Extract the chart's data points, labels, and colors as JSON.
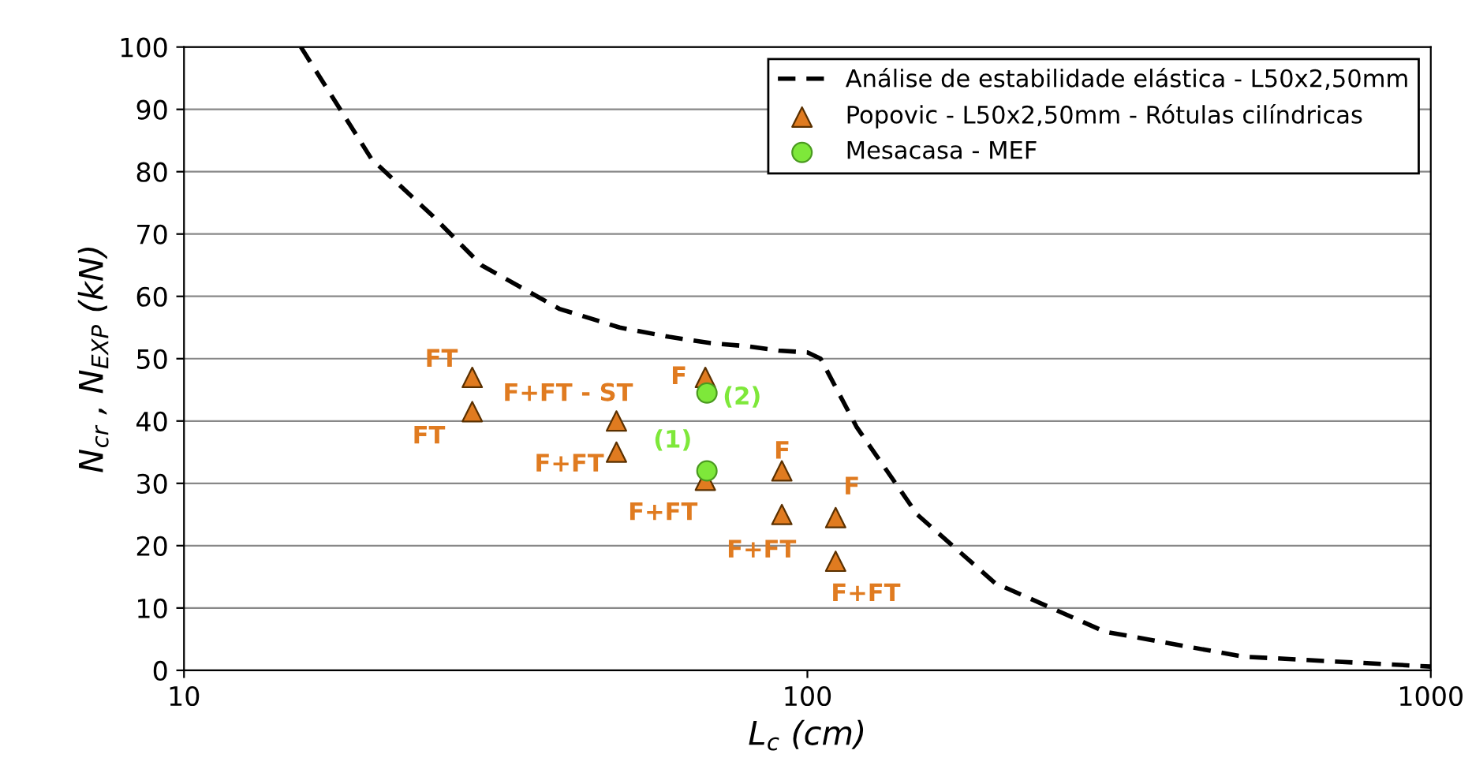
{
  "chart_data": {
    "type": "scatter",
    "xlabel": "L$_{c}$ (cm)",
    "ylabel": "N$_{cr}$ , N$_{EXP}$ (kN)",
    "log": "x",
    "xlim": [
      10,
      1000
    ],
    "xticks": [
      10,
      100,
      1000
    ],
    "ylim": [
      0,
      100
    ],
    "yticks": [
      0,
      10,
      20,
      30,
      40,
      50,
      60,
      70,
      80,
      90,
      100
    ],
    "grid": "y",
    "legend": "top right",
    "series": [
      {
        "name": "Análise de estabilidade elástica - L50x2,50mm",
        "type": "line",
        "line_style": "dashed",
        "marker": "none",
        "color": "#000000",
        "x": [
          15.4,
          20,
          25,
          30,
          40,
          50,
          60,
          70,
          80,
          90,
          100,
          105,
          120,
          150,
          200,
          300,
          500,
          1000
        ],
        "values": [
          100,
          82,
          73,
          65,
          58,
          55,
          53.5,
          52.5,
          52,
          51.3,
          51,
          50,
          39,
          25,
          14,
          6.2,
          2.2,
          0.6
        ]
      },
      {
        "name": "Popovic - L50x2,50mm - Rótulas cilíndricas",
        "marker": "triangle",
        "color": "#e07b20",
        "x": [
          29,
          29,
          49.4,
          49.4,
          68.6,
          68.6,
          91,
          91,
          111,
          111
        ],
        "values": [
          47,
          41.5,
          40,
          35,
          47,
          30.5,
          32,
          25,
          24.5,
          17.5
        ]
      },
      {
        "name": "Mesacasa - MEF",
        "marker": "circle",
        "color": "#7ee83a",
        "x": [
          69,
          69
        ],
        "values": [
          44.5,
          32
        ]
      }
    ],
    "annotations": [
      {
        "text": "FT",
        "x": 29,
        "y": 47
      },
      {
        "text": "FT",
        "x": 29,
        "y": 41.5
      },
      {
        "text": "F+FT - ST",
        "x": 49.4,
        "y": 40
      },
      {
        "text": "F+FT",
        "x": 49.4,
        "y": 35
      },
      {
        "text": "F",
        "x": 68.6,
        "y": 47
      },
      {
        "text": "F+FT",
        "x": 68.6,
        "y": 30.5
      },
      {
        "text": "F",
        "x": 91,
        "y": 32
      },
      {
        "text": "F+FT",
        "x": 91,
        "y": 25
      },
      {
        "text": "F",
        "x": 111,
        "y": 24.5
      },
      {
        "text": "F+FT",
        "x": 111,
        "y": 17.5
      },
      {
        "text": "(2)",
        "x": 69,
        "y": 44.5
      },
      {
        "text": "(1)",
        "x": 69,
        "y": 32
      }
    ]
  }
}
